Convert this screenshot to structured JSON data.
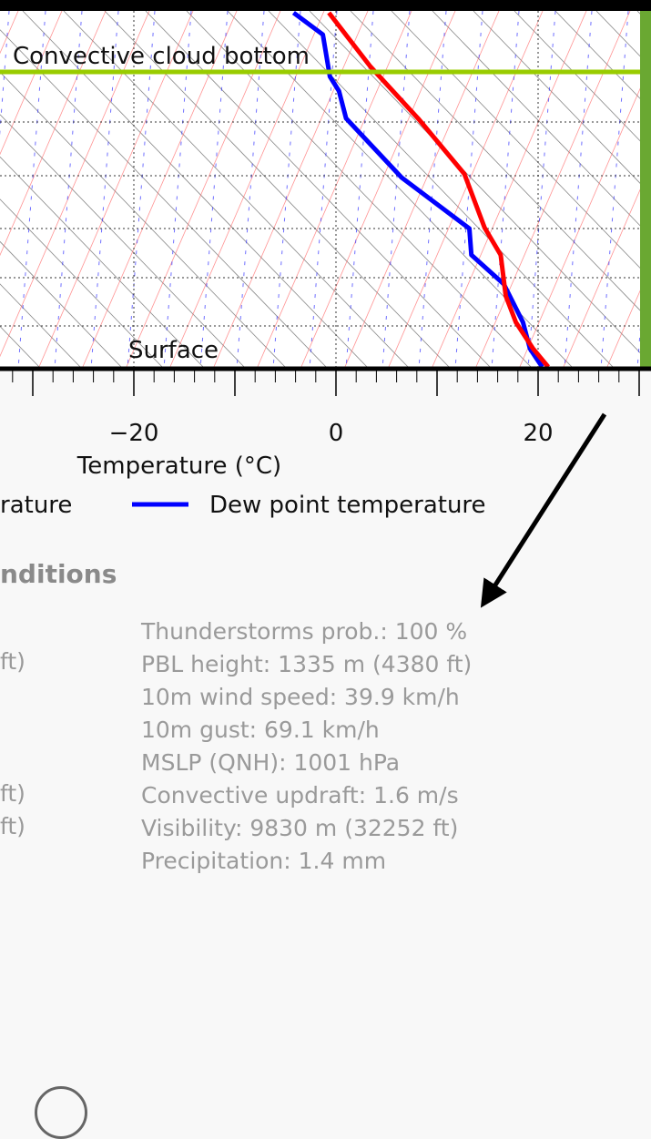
{
  "chart_data": {
    "type": "line",
    "title": "",
    "xlabel": "Temperature (°C)",
    "ylabel": "",
    "x_ticks": [
      -20,
      0,
      20
    ],
    "x_tick_labels": [
      "−20",
      "0",
      "20"
    ],
    "xlim": [
      -33,
      30
    ],
    "grid": true,
    "annotations": [
      "Convective cloud bottom",
      "Surface"
    ],
    "series": [
      {
        "name": "Dew point temperature",
        "color": "#0000ff",
        "points": [
          [
            -4.2,
            14
          ],
          [
            -1.3,
            38
          ],
          [
            -0.6,
            84
          ],
          [
            0.3,
            100
          ],
          [
            1.0,
            130
          ],
          [
            6.5,
            195
          ],
          [
            13.2,
            251
          ],
          [
            13.4,
            280
          ],
          [
            16.6,
            312
          ],
          [
            18.5,
            354
          ],
          [
            19.2,
            383
          ],
          [
            20.4,
            403
          ]
        ]
      },
      {
        "name": "",
        "label_fragment": "rature",
        "color": "#ff0000",
        "points": [
          [
            -0.7,
            14
          ],
          [
            3.4,
            73
          ],
          [
            8.2,
            131
          ],
          [
            12.7,
            191
          ],
          [
            14.7,
            250
          ],
          [
            16.3,
            280
          ],
          [
            16.8,
            325
          ],
          [
            17.8,
            354
          ],
          [
            19.5,
            383
          ],
          [
            21.0,
            403
          ]
        ]
      }
    ],
    "levels": {
      "cloud_bottom_y": 79,
      "surface_y": 405
    },
    "legend_position": "bottom"
  },
  "legend": {
    "temperature_fragment": "rature",
    "dewpoint_label": "Dew point temperature"
  },
  "conditions": {
    "heading_fragment": "nditions",
    "left_fragments": [
      "ft)",
      "ft)",
      "ft)"
    ],
    "items": [
      "Thunderstorms prob.: 100 %",
      "PBL height: 1335 m (4380 ft)",
      "10m wind speed: 39.9 km/h",
      "10m gust: 69.1 km/h",
      "MSLP (QNH): 1001 hPa",
      "Convective updraft: 1.6 m/s",
      "Visibility: 9830 m (32252 ft)",
      "Precipitation: 1.4 mm"
    ]
  },
  "colors": {
    "cloud_line": "#99cc00",
    "right_bar": "#6aa832",
    "heading_gray": "#8a8a8a",
    "text_gray": "#9a9a9a"
  }
}
